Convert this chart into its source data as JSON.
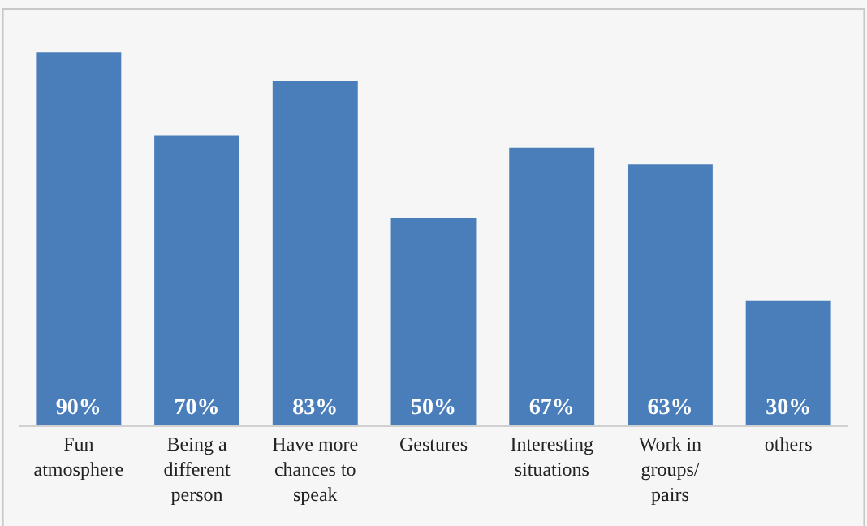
{
  "chart_data": {
    "type": "bar",
    "categories": [
      "Fun atmosphere",
      "Being a different person",
      "Have more chances to speak",
      "Gestures",
      "Interesting situations",
      "Work in groups/ pairs",
      "others"
    ],
    "values": [
      90,
      70,
      83,
      50,
      67,
      63,
      30
    ],
    "value_labels": [
      "90%",
      "70%",
      "83%",
      "50%",
      "67%",
      "63%",
      "30%"
    ],
    "color": "#4a7ebb",
    "grid": false,
    "legend": false
  }
}
